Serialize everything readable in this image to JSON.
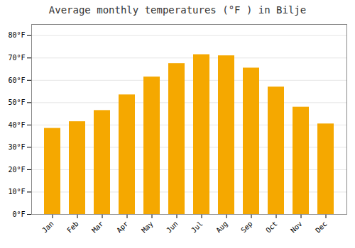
{
  "chart_data": {
    "type": "bar",
    "title": "Average monthly temperatures (°F ) in Bilje",
    "categories": [
      "Jan",
      "Feb",
      "Mar",
      "Apr",
      "May",
      "Jun",
      "Jul",
      "Aug",
      "Sep",
      "Oct",
      "Nov",
      "Dec"
    ],
    "values": [
      38.5,
      41.5,
      46.5,
      53.5,
      61.5,
      67.5,
      71.5,
      71.0,
      65.5,
      57.0,
      48.0,
      40.5
    ],
    "color": "#F5A800",
    "ylim": [
      0,
      85
    ],
    "yticks": [
      {
        "value": 0,
        "label": "0°F"
      },
      {
        "value": 10,
        "label": "10°F"
      },
      {
        "value": 20,
        "label": "20°F"
      },
      {
        "value": 30,
        "label": "30°F"
      },
      {
        "value": 40,
        "label": "40°F"
      },
      {
        "value": 50,
        "label": "50°F"
      },
      {
        "value": 60,
        "label": "60°F"
      },
      {
        "value": 70,
        "label": "70°F"
      },
      {
        "value": 80,
        "label": "80°F"
      }
    ],
    "grid": true
  }
}
